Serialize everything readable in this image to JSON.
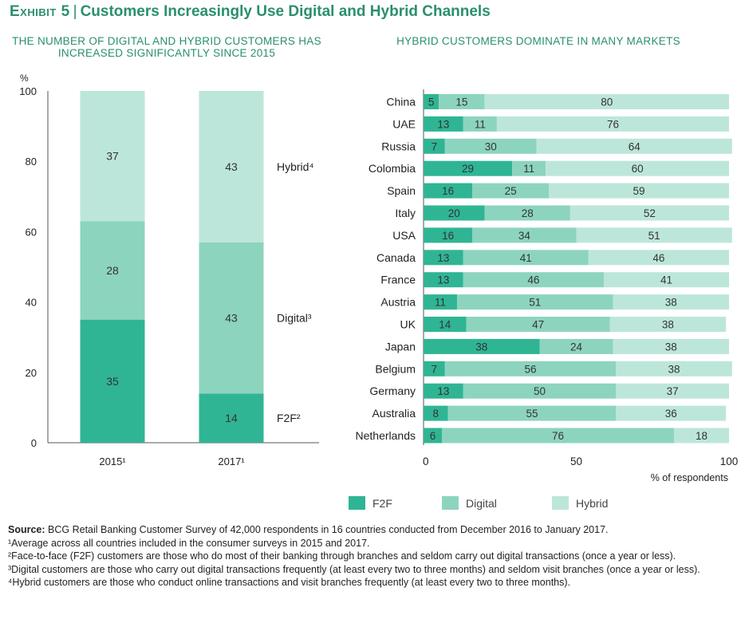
{
  "header": {
    "exhibit": "Exhibit 5",
    "title": "Customers Increasingly Use Digital and Hybrid Channels"
  },
  "colors": {
    "F2F": "#2fb594",
    "Digital": "#8dd4bf",
    "Hybrid": "#bde6da"
  },
  "chart_data": [
    {
      "type": "bar",
      "stacked": true,
      "orientation": "vertical",
      "title": "THE NUMBER OF DIGITAL AND HYBRID CUSTOMERS HAS INCREASED SIGNIFICANTLY SINCE 2015",
      "ylabel": "%",
      "ylim": [
        0,
        100
      ],
      "yticks": [
        0,
        20,
        40,
        60,
        80,
        100
      ],
      "categories": [
        "2015",
        "2017"
      ],
      "category_footnote": "1",
      "series": [
        {
          "name": "F2F",
          "footnote": "2",
          "values": [
            35,
            14
          ]
        },
        {
          "name": "Digital",
          "footnote": "3",
          "values": [
            28,
            43
          ]
        },
        {
          "name": "Hybrid",
          "footnote": "4",
          "values": [
            37,
            43
          ]
        }
      ]
    },
    {
      "type": "bar",
      "stacked": true,
      "orientation": "horizontal",
      "title": "HYBRID CUSTOMERS DOMINATE IN MANY MARKETS",
      "xlabel": "% of respondents",
      "xlim": [
        0,
        100
      ],
      "xticks": [
        0,
        50,
        100
      ],
      "categories": [
        "China",
        "UAE",
        "Russia",
        "Colombia",
        "Spain",
        "Italy",
        "USA",
        "Canada",
        "France",
        "Austria",
        "UK",
        "Japan",
        "Belgium",
        "Germany",
        "Australia",
        "Netherlands"
      ],
      "series": [
        {
          "name": "F2F",
          "values": [
            5,
            13,
            7,
            29,
            16,
            20,
            16,
            13,
            13,
            11,
            14,
            38,
            7,
            13,
            8,
            6
          ]
        },
        {
          "name": "Digital",
          "values": [
            15,
            11,
            30,
            11,
            25,
            28,
            34,
            41,
            46,
            51,
            47,
            24,
            56,
            50,
            55,
            76
          ]
        },
        {
          "name": "Hybrid",
          "values": [
            80,
            76,
            64,
            60,
            59,
            52,
            51,
            46,
            41,
            38,
            38,
            38,
            38,
            37,
            36,
            18
          ]
        }
      ],
      "legend": [
        "F2F",
        "Digital",
        "Hybrid"
      ],
      "legend_position": "bottom"
    }
  ],
  "footnotes": {
    "source_label": "Source:",
    "source_text": "BCG Retail Banking Customer Survey of 42,000 respondents in 16 countries conducted from December 2016 to January 2017.",
    "notes": [
      "¹Average across all countries included in the consumer surveys in 2015 and 2017.",
      "²Face-to-face (F2F) customers are those who do most of their banking through branches and seldom carry out digital transactions (once a year or less).",
      "³Digital customers are those who carry out digital transactions frequently (at least every two to three months) and seldom visit branches (once a year or less).",
      "⁴Hybrid customers are those who conduct online transactions and visit branches frequently (at least every two to three months)."
    ]
  }
}
